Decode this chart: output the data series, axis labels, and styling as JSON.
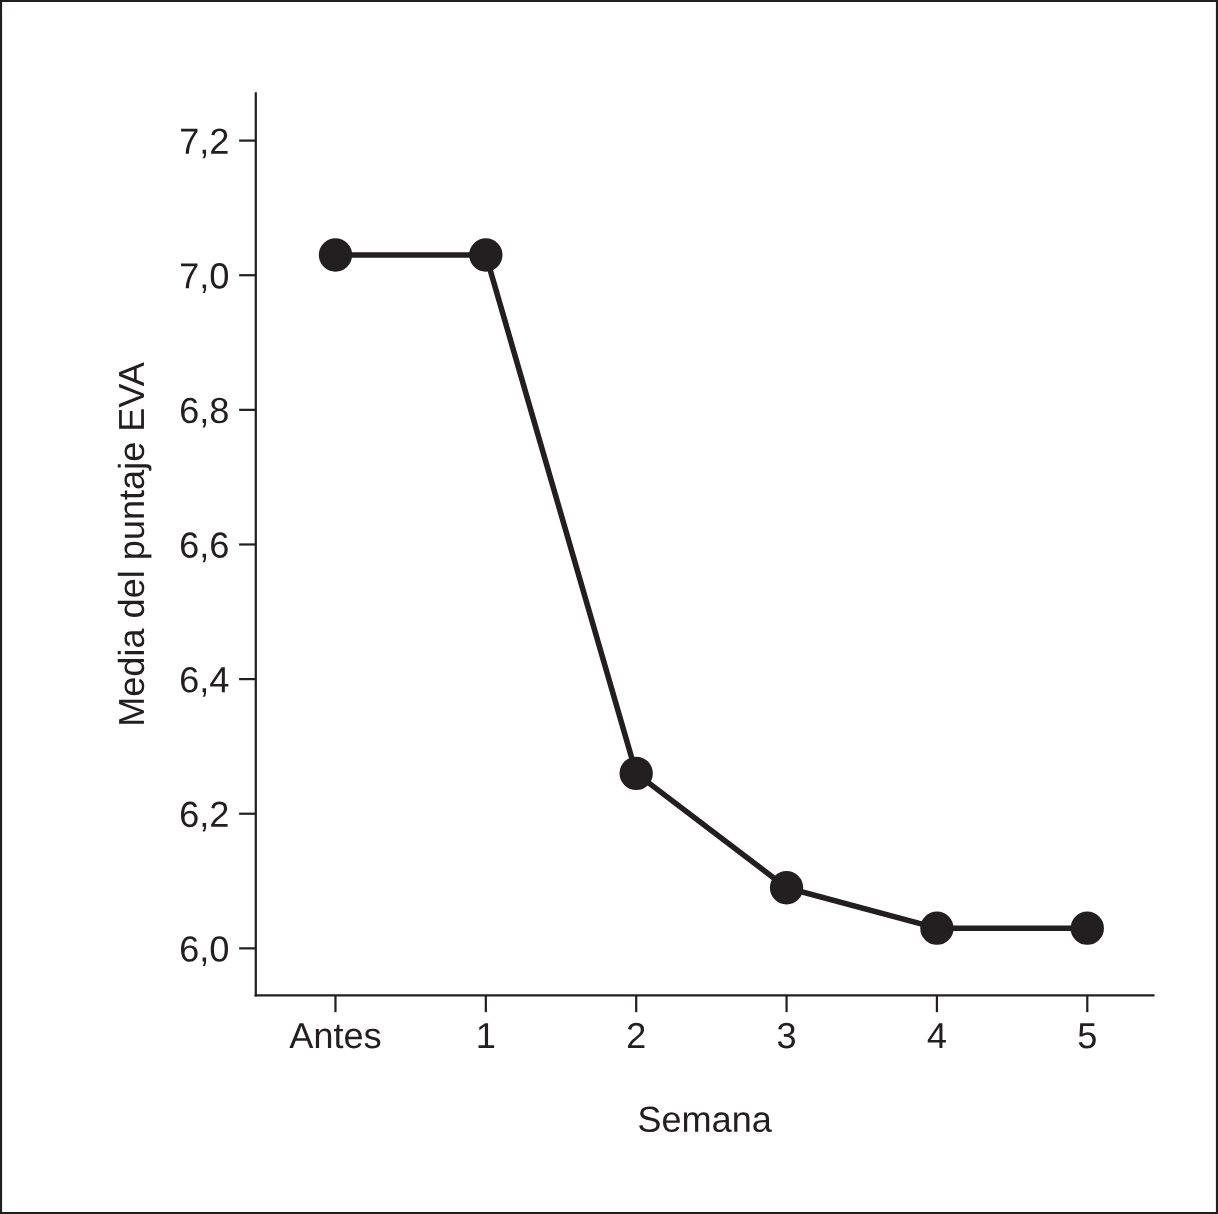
{
  "chart_data": {
    "type": "line",
    "xlabel": "Semana",
    "ylabel": "Media del puntaje EVA",
    "categories": [
      "Antes",
      "1",
      "2",
      "3",
      "4",
      "5"
    ],
    "series": [
      {
        "color": "#231f20",
        "values": [
          7.03,
          7.03,
          6.26,
          6.09,
          6.03,
          6.03
        ]
      }
    ],
    "ylim": [
      5.93,
      7.27
    ],
    "yticks": [
      {
        "value": 6.0,
        "label": "6,0"
      },
      {
        "value": 6.2,
        "label": "6,2"
      },
      {
        "value": 6.4,
        "label": "6,4"
      },
      {
        "value": 6.6,
        "label": "6,6"
      },
      {
        "value": 6.8,
        "label": "6,8"
      },
      {
        "value": 7.0,
        "label": "7,0"
      },
      {
        "value": 7.2,
        "label": "7,2"
      }
    ],
    "marker": "circle",
    "line_style": "solid",
    "grid": false,
    "legend": false
  }
}
